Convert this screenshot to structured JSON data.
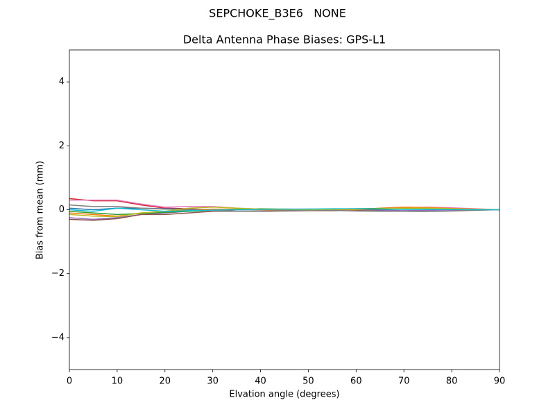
{
  "chart_data": {
    "type": "line",
    "suptitle": "SEPCHOKE_B3E6   NONE",
    "title": "Delta Antenna Phase Biases: GPS-L1",
    "xlabel": "Elvation angle (degrees)",
    "ylabel": "Bias from mean (mm)",
    "x": [
      0,
      5,
      10,
      15,
      20,
      25,
      30,
      35,
      40,
      45,
      50,
      55,
      60,
      65,
      70,
      75,
      80,
      85,
      90
    ],
    "xlim": [
      0,
      90
    ],
    "xticks": [
      0,
      10,
      20,
      30,
      40,
      50,
      60,
      70,
      80,
      90
    ],
    "ylim": [
      -5,
      5
    ],
    "yticks": [
      {
        "value": -4,
        "label": "−4"
      },
      {
        "value": -2,
        "label": "−2"
      },
      0,
      2,
      4
    ],
    "grid": false,
    "series": [
      {
        "color": "#d62728",
        "values": [
          0.35,
          0.28,
          0.28,
          0.15,
          0.05,
          0.03,
          0.0,
          -0.05,
          -0.05,
          -0.03,
          -0.02,
          -0.01,
          0.0,
          0.02,
          0.05,
          0.07,
          0.05,
          0.02,
          0
        ]
      },
      {
        "color": "#e377c2",
        "values": [
          0.3,
          0.3,
          0.3,
          0.18,
          0.08,
          0.1,
          0.1,
          0.05,
          0.02,
          0,
          0,
          0.01,
          0.02,
          0.04,
          0.06,
          0.08,
          0.06,
          0.03,
          0
        ]
      },
      {
        "color": "#9467bd",
        "values": [
          -0.25,
          -0.3,
          -0.25,
          -0.15,
          -0.1,
          -0.05,
          -0.02,
          0,
          0.01,
          0.02,
          0.02,
          0.01,
          0,
          -0.02,
          -0.03,
          -0.02,
          -0.01,
          0,
          0
        ]
      },
      {
        "color": "#8c564b",
        "values": [
          -0.3,
          -0.33,
          -0.28,
          -0.15,
          -0.15,
          -0.1,
          -0.05,
          -0.05,
          -0.05,
          -0.04,
          -0.03,
          -0.03,
          -0.02,
          0,
          0.02,
          0.03,
          0.02,
          0.01,
          0
        ]
      },
      {
        "color": "#1f77b4",
        "values": [
          0.05,
          0.0,
          0.05,
          0.05,
          0.03,
          0.02,
          0.01,
          0,
          0,
          0.01,
          0.02,
          0.02,
          0.03,
          0.03,
          0.03,
          0.02,
          0.01,
          0.01,
          0
        ]
      },
      {
        "color": "#ff7f0e",
        "values": [
          -0.1,
          -0.15,
          -0.2,
          -0.1,
          -0.05,
          0,
          0.02,
          0.02,
          0,
          -0.01,
          -0.02,
          -0.02,
          0,
          0.05,
          0.08,
          0.07,
          0.04,
          0.02,
          0
        ]
      },
      {
        "color": "#2ca02c",
        "values": [
          -0.05,
          -0.1,
          -0.15,
          -0.12,
          -0.08,
          -0.05,
          -0.02,
          0.01,
          0.03,
          0.02,
          0.01,
          0.02,
          0.03,
          0.04,
          0.04,
          0.03,
          0.02,
          0.01,
          0
        ]
      },
      {
        "color": "#7f7f7f",
        "values": [
          0.15,
          0.1,
          0.1,
          0.05,
          0.02,
          0,
          -0.03,
          -0.05,
          -0.04,
          -0.03,
          -0.02,
          -0.02,
          -0.04,
          -0.05,
          -0.05,
          -0.06,
          -0.04,
          -0.02,
          0
        ]
      },
      {
        "color": "#bcbd22",
        "values": [
          -0.15,
          -0.2,
          -0.22,
          -0.1,
          -0.05,
          0.05,
          0.08,
          0.05,
          0.02,
          0.01,
          0,
          0.01,
          0.02,
          0.03,
          0.05,
          0.05,
          0.03,
          0.01,
          0
        ]
      },
      {
        "color": "#17becf",
        "values": [
          0,
          -0.05,
          0.05,
          0.0,
          -0.05,
          -0.03,
          -0.01,
          0,
          0.01,
          0.02,
          0.02,
          0.03,
          0.03,
          0.02,
          0.01,
          0.01,
          0.01,
          0,
          0
        ]
      }
    ]
  }
}
